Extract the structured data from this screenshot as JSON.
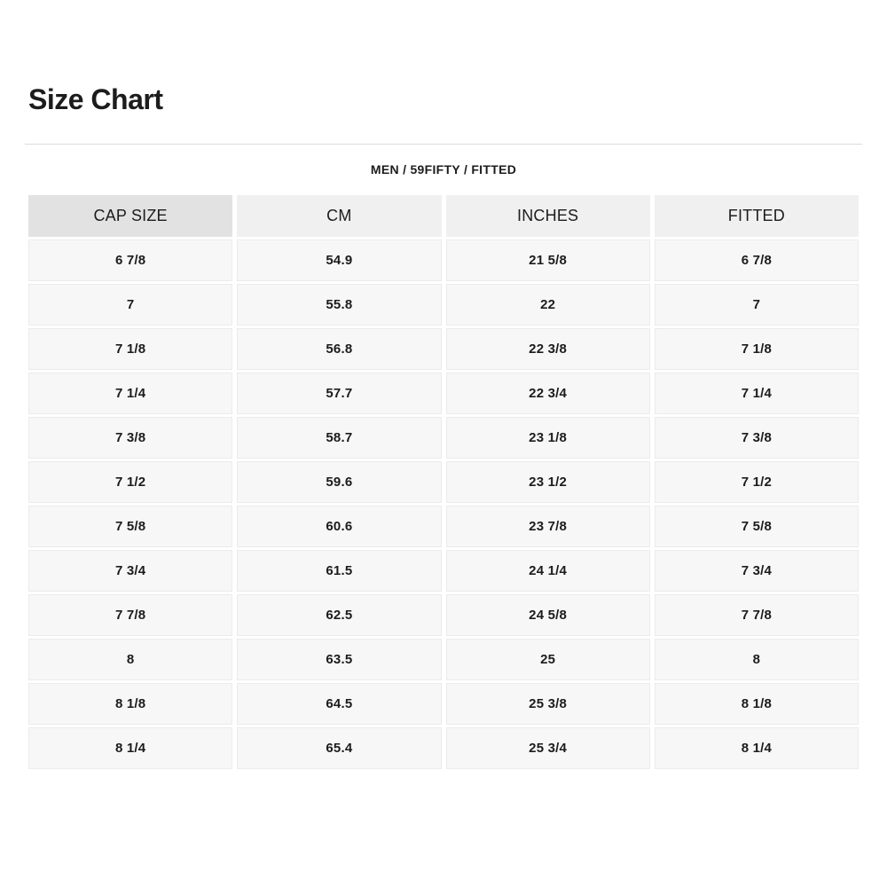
{
  "page": {
    "title": "Size Chart",
    "category": "MEN / 59FIFTY / FITTED"
  },
  "table": {
    "headers": [
      "CAP SIZE",
      "CM",
      "INCHES",
      "FITTED"
    ],
    "column_keys": [
      "cap-size",
      "cm",
      "inches",
      "fitted"
    ],
    "rows": [
      [
        "6 7/8",
        "54.9",
        "21 5/8",
        "6 7/8"
      ],
      [
        "7",
        "55.8",
        "22",
        "7"
      ],
      [
        "7 1/8",
        "56.8",
        "22 3/8",
        "7 1/8"
      ],
      [
        "7 1/4",
        "57.7",
        "22 3/4",
        "7 1/4"
      ],
      [
        "7 3/8",
        "58.7",
        "23 1/8",
        "7 3/8"
      ],
      [
        "7 1/2",
        "59.6",
        "23 1/2",
        "7 1/2"
      ],
      [
        "7 5/8",
        "60.6",
        "23 7/8",
        "7 5/8"
      ],
      [
        "7 3/4",
        "61.5",
        "24 1/4",
        "7 3/4"
      ],
      [
        "7 7/8",
        "62.5",
        "24 5/8",
        "7 7/8"
      ],
      [
        "8",
        "63.5",
        "25",
        "8"
      ],
      [
        "8 1/8",
        "64.5",
        "25 3/8",
        "8 1/8"
      ],
      [
        "8 1/4",
        "65.4",
        "25 3/4",
        "8 1/4"
      ]
    ]
  },
  "colors": {
    "header_first_bg": "#e2e2e2",
    "header_bg": "#f0f0f0",
    "cell_bg": "#f7f7f7",
    "cell_border": "#ebebeb",
    "divider": "#dcdcdc",
    "text": "#1c1c1c",
    "background": "#ffffff"
  }
}
